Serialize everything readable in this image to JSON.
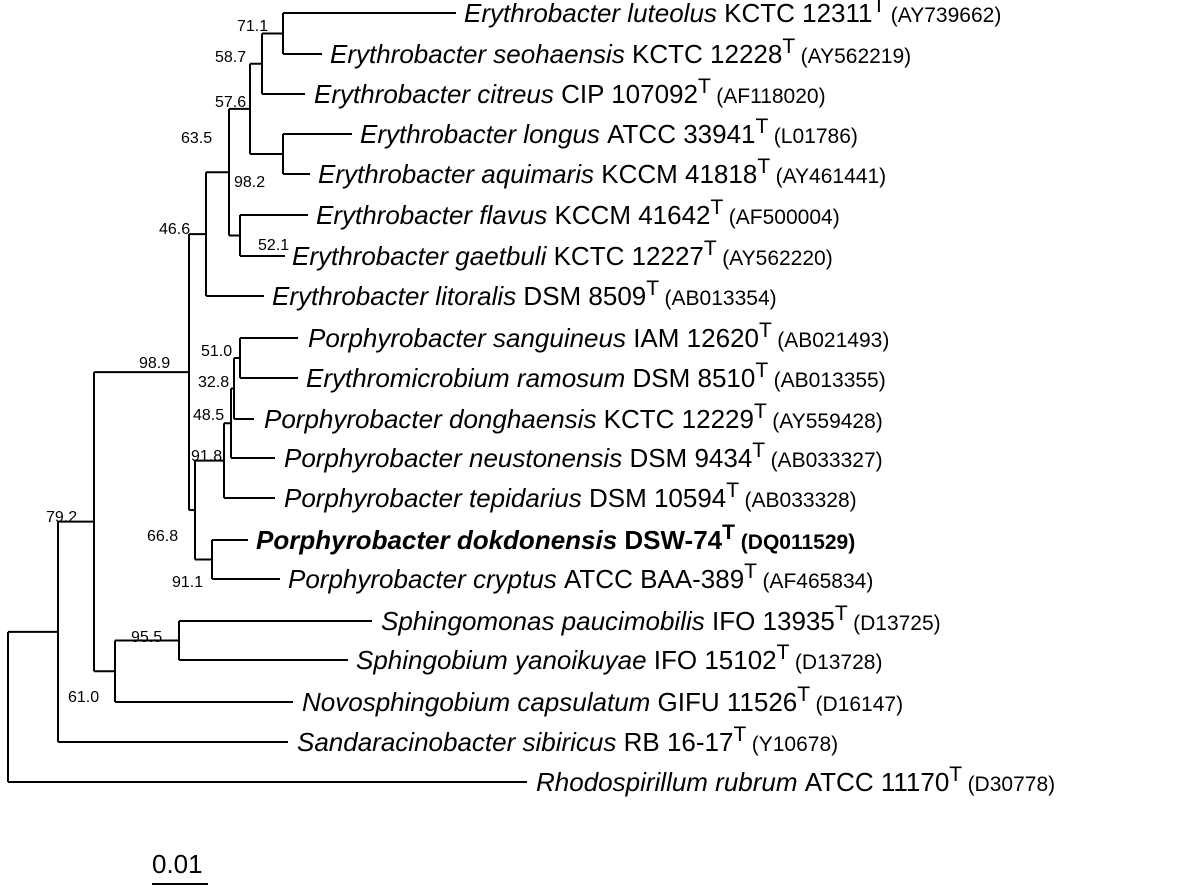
{
  "taxa": [
    {
      "genus_species": "Erythrobacter luteolus",
      "strain": "KCTC 12311",
      "accession": "(AY739662)",
      "bold": false
    },
    {
      "genus_species": "Erythrobacter seohaensis",
      "strain": "KCTC 12228",
      "accession": "(AY562219)",
      "bold": false
    },
    {
      "genus_species": "Erythrobacter citreus",
      "strain": "CIP 107092",
      "accession": "(AF118020)",
      "bold": false
    },
    {
      "genus_species": "Erythrobacter longus",
      "strain": "ATCC 33941",
      "accession": "(L01786)",
      "bold": false
    },
    {
      "genus_species": "Erythrobacter aquimaris",
      "strain": "KCCM 41818",
      "accession": "(AY461441)",
      "bold": false
    },
    {
      "genus_species": "Erythrobacter flavus",
      "strain": "KCCM 41642",
      "accession": "(AF500004)",
      "bold": false
    },
    {
      "genus_species": "Erythrobacter gaetbuli",
      "strain": "KCTC 12227",
      "accession": "(AY562220)",
      "bold": false
    },
    {
      "genus_species": "Erythrobacter litoralis",
      "strain": "DSM 8509",
      "accession": "(AB013354)",
      "bold": false
    },
    {
      "genus_species": "Porphyrobacter sanguineus",
      "strain": "IAM 12620",
      "accession": "(AB021493)",
      "bold": false
    },
    {
      "genus_species": "Erythromicrobium ramosum",
      "strain": "DSM 8510",
      "accession": "(AB013355)",
      "bold": false
    },
    {
      "genus_species": "Porphyrobacter donghaensis",
      "strain": "KCTC 12229",
      "accession": "(AY559428)",
      "bold": false
    },
    {
      "genus_species": "Porphyrobacter neustonensis",
      "strain": "DSM 9434",
      "accession": "(AB033327)",
      "bold": false
    },
    {
      "genus_species": "Porphyrobacter tepidarius",
      "strain": "DSM 10594",
      "accession": "(AB033328)",
      "bold": false
    },
    {
      "genus_species": "Porphyrobacter dokdonensis",
      "strain": "DSW-74",
      "accession": "(DQ011529)",
      "bold": true
    },
    {
      "genus_species": "Porphyrobacter cryptus",
      "strain": "ATCC BAA-389",
      "accession": "(AF465834)",
      "bold": false
    },
    {
      "genus_species": "Sphingomonas paucimobilis",
      "strain": "IFO 13935",
      "accession": "(D13725)",
      "bold": false
    },
    {
      "genus_species": "Sphingobium yanoikuyae",
      "strain": "IFO 15102",
      "accession": "(D13728)",
      "bold": false
    },
    {
      "genus_species": "Novosphingobium capsulatum",
      "strain": "GIFU 11526",
      "accession": "(D16147)",
      "bold": false
    },
    {
      "genus_species": "Sandaracinobacter sibiricus",
      "strain": "RB 16-17",
      "accession": "(Y10678)",
      "bold": false
    },
    {
      "genus_species": "Rhodospirillum rubrum",
      "strain": "ATCC 11170",
      "accession": "(D30778)",
      "bold": false
    }
  ],
  "type_strain_mark": "T",
  "bootstrap": [
    "71.1",
    "58.7",
    "57.6",
    "98.2",
    "63.5",
    "52.1",
    "46.6",
    "98.9",
    "51.0",
    "32.8",
    "48.5",
    "91.8",
    "66.8",
    "91.1",
    "95.5",
    "79.2",
    "61.0"
  ],
  "scale_bar": {
    "label": "0.01"
  }
}
